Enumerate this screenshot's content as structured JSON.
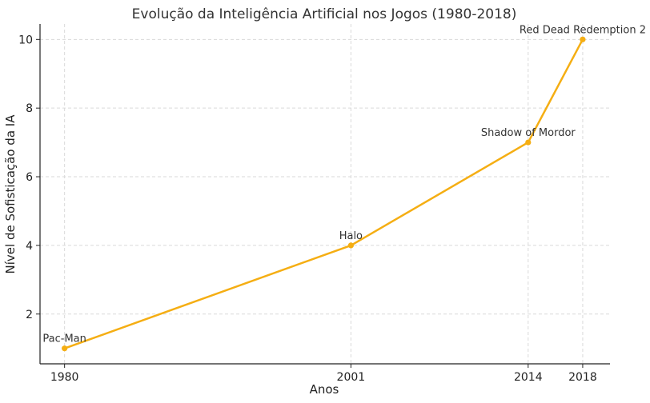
{
  "chart_data": {
    "type": "line",
    "title": "Evolução da Inteligência Artificial nos Jogos (1980-2018)",
    "xlabel": "Anos",
    "ylabel": "Nível de Sofisticação da IA",
    "x": [
      1980,
      2001,
      2014,
      2018
    ],
    "x_ticks": [
      "1980",
      "2001",
      "2014",
      "2018"
    ],
    "y_ticks": [
      "2",
      "4",
      "6",
      "8",
      "10"
    ],
    "xlim": [
      1978.2,
      2020.0
    ],
    "ylim": [
      0.55,
      10.45
    ],
    "grid": true,
    "color": "#f5ae13",
    "series": [
      {
        "values": [
          1,
          4,
          7,
          10
        ],
        "labels": [
          "Pac-Man",
          "Halo",
          "Shadow of Mordor",
          "Red Dead Redemption 2"
        ]
      }
    ]
  }
}
